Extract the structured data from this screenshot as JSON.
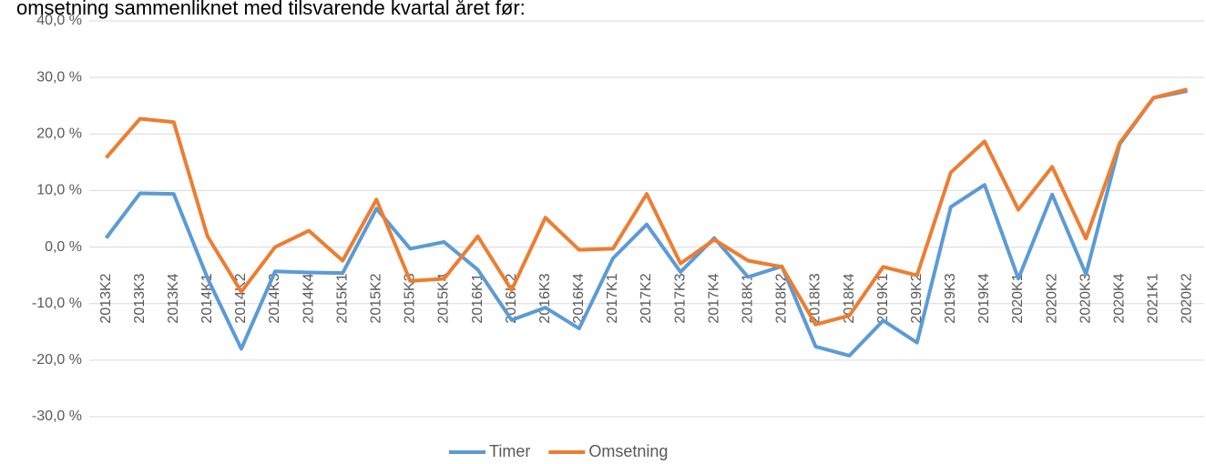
{
  "chart_data": {
    "type": "line",
    "title": "omsetning sammenliknet med tilsvarende kvartal året før:",
    "categories": [
      "2013K2",
      "2013K3",
      "2013K4",
      "2014K1",
      "2014K2",
      "2014K3",
      "2014K4",
      "2015K1",
      "2015K2",
      "2015K3",
      "2015K4",
      "2016K1",
      "2016K2",
      "2016K3",
      "2016K4",
      "2017K1",
      "2017K2",
      "2017K3",
      "2017K4",
      "2018K1",
      "2018K2",
      "2018K3",
      "2018K4",
      "2019K1",
      "2019K2",
      "2019K3",
      "2019K4",
      "2020K1",
      "2020K2",
      "2020K3",
      "2020K4",
      "2021K1",
      "2020K2"
    ],
    "series": [
      {
        "name": "Timer",
        "color": "#5b9bd5",
        "values": [
          1.6,
          9.5,
          9.4,
          -5.5,
          -18.0,
          -4.3,
          -4.5,
          -4.6,
          6.8,
          -0.3,
          0.9,
          -4.0,
          -12.9,
          -10.7,
          -14.4,
          -2.0,
          4.0,
          -4.4,
          1.6,
          -5.3,
          -3.4,
          -17.6,
          -19.2,
          -13.0,
          -16.9,
          7.1,
          11.0,
          -5.6,
          9.3,
          -4.8,
          18.2,
          26.4,
          27.6
        ]
      },
      {
        "name": "Omsetning",
        "color": "#ed7d31",
        "values": [
          15.8,
          22.7,
          22.1,
          1.9,
          -7.9,
          0.0,
          2.9,
          -2.4,
          8.4,
          -6.0,
          -5.6,
          1.9,
          -7.6,
          5.2,
          -0.5,
          -0.3,
          9.4,
          -2.9,
          1.3,
          -2.4,
          -3.5,
          -13.7,
          -12.1,
          -3.5,
          -5.0,
          13.2,
          18.7,
          6.6,
          14.2,
          1.5,
          18.4,
          26.4,
          27.9
        ]
      }
    ],
    "ylim": [
      -30,
      40
    ],
    "yticks": [
      {
        "value": -30,
        "label": "-30,0 %"
      },
      {
        "value": -20,
        "label": "-20,0 %"
      },
      {
        "value": -10,
        "label": "-10,0 %"
      },
      {
        "value": 0,
        "label": "0,0 %"
      },
      {
        "value": 10,
        "label": "10,0 %"
      },
      {
        "value": 20,
        "label": "20,0 %"
      },
      {
        "value": 30,
        "label": "30,0 %"
      },
      {
        "value": 40,
        "label": "40,0 %"
      }
    ],
    "grid": true,
    "legend": "bottom"
  }
}
